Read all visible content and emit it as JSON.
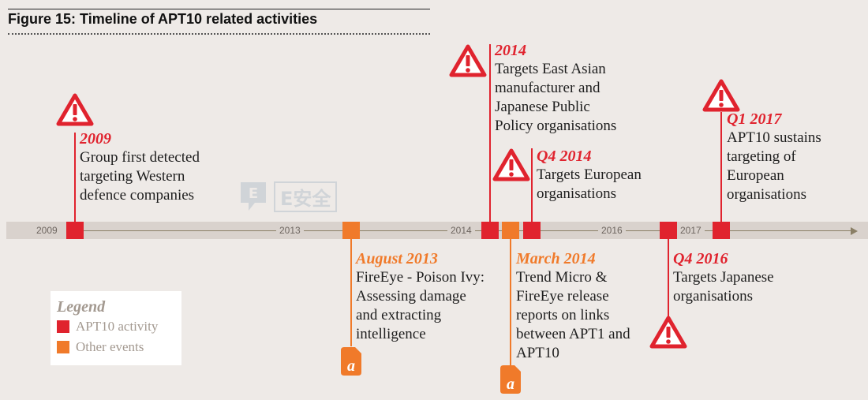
{
  "figure": {
    "title": "Figure 15: Timeline of APT10 related activities"
  },
  "axis": {
    "years": [
      "2009",
      "2013",
      "2014",
      "2016",
      "2017"
    ]
  },
  "events": [
    {
      "date": "2009",
      "description": "Group first detected\ntargeting Western\ndefence companies",
      "category": "APT10 activity",
      "icon": "warning-icon"
    },
    {
      "date": "August 2013",
      "description": "FireEye - Poison Ivy:\nAssessing damage\nand extracting\nintelligence",
      "category": "Other events",
      "icon": "document-icon"
    },
    {
      "date": "2014",
      "description": "Targets East Asian\nmanufacturer and\nJapanese Public\nPolicy organisations",
      "category": "APT10 activity",
      "icon": "warning-icon"
    },
    {
      "date": "March 2014",
      "description": "Trend Micro &\nFireEye release\nreports on links\nbetween APT1 and\nAPT10",
      "category": "Other events",
      "icon": "document-icon"
    },
    {
      "date": "Q4 2014",
      "description": "Targets European\norganisations",
      "category": "APT10 activity",
      "icon": "warning-icon"
    },
    {
      "date": "Q4 2016",
      "description": "Targets Japanese\norganisations",
      "category": "APT10 activity",
      "icon": "warning-icon"
    },
    {
      "date": "Q1 2017",
      "description": "APT10 sustains\ntargeting of\nEuropean\norganisations",
      "category": "APT10 activity",
      "icon": "warning-icon"
    }
  ],
  "legend": {
    "title": "Legend",
    "items": [
      {
        "label": "APT10 activity",
        "color": "#e0232e"
      },
      {
        "label": "Other events",
        "color": "#f07a2a"
      }
    ]
  },
  "watermark": {
    "text": "E安全"
  },
  "colors": {
    "apt10": "#e0232e",
    "other": "#f07a2a",
    "axis_band": "#d9d2cd",
    "background": "#eeeae7"
  }
}
